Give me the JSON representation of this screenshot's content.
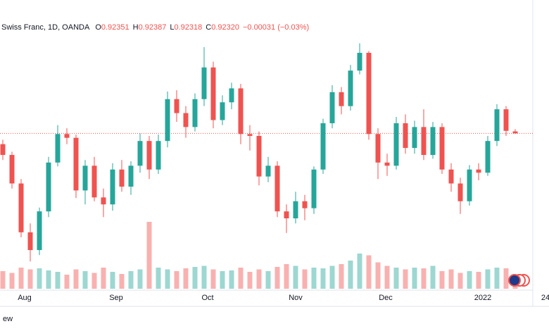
{
  "chart_data": {
    "type": "candlestick",
    "header": {
      "symbol": "Swiss Franc, 1D, OANDA",
      "o_label": "O",
      "open": "0.92351",
      "h_label": "H",
      "high": "0.92387",
      "l_label": "L",
      "low": "0.92318",
      "c_label": "C",
      "close": "0.92320",
      "change": "−0.00031 (−0.03%)"
    },
    "x_labels": [
      "Aug",
      "Sep",
      "Oct",
      "Nov",
      "Dec",
      "2022",
      "24"
    ],
    "footer": "ew",
    "up_color": "#26a69a",
    "down_color": "#ef5350",
    "ylim": [
      0.8987,
      0.9409
    ],
    "vlim": [
      0,
      260
    ],
    "last_price": 0.9232,
    "candles": [
      [
        0.9215,
        0.9222,
        0.919,
        0.9198
      ],
      [
        0.9198,
        0.9203,
        0.9145,
        0.9153
      ],
      [
        0.9153,
        0.916,
        0.9068,
        0.9076
      ],
      [
        0.9076,
        0.909,
        0.903,
        0.9048
      ],
      [
        0.9048,
        0.9115,
        0.904,
        0.9109
      ],
      [
        0.9109,
        0.9195,
        0.91,
        0.9186
      ],
      [
        0.9186,
        0.9245,
        0.918,
        0.9231
      ],
      [
        0.9231,
        0.924,
        0.9215,
        0.9225
      ],
      [
        0.9225,
        0.923,
        0.913,
        0.9142
      ],
      [
        0.9142,
        0.919,
        0.912,
        0.9181
      ],
      [
        0.9181,
        0.9195,
        0.9125,
        0.9131
      ],
      [
        0.9131,
        0.9145,
        0.91,
        0.912
      ],
      [
        0.912,
        0.9185,
        0.911,
        0.9175
      ],
      [
        0.9175,
        0.919,
        0.914,
        0.9148
      ],
      [
        0.9148,
        0.9188,
        0.9135,
        0.9181
      ],
      [
        0.9181,
        0.9232,
        0.917,
        0.922
      ],
      [
        0.922,
        0.9228,
        0.916,
        0.9175
      ],
      [
        0.9175,
        0.923,
        0.9168,
        0.922
      ],
      [
        0.922,
        0.9298,
        0.921,
        0.9286
      ],
      [
        0.9286,
        0.93,
        0.925,
        0.9264
      ],
      [
        0.9264,
        0.9275,
        0.9225,
        0.9242
      ],
      [
        0.9242,
        0.9295,
        0.9235,
        0.9286
      ],
      [
        0.9286,
        0.9368,
        0.9275,
        0.9336
      ],
      [
        0.9336,
        0.9345,
        0.924,
        0.9253
      ],
      [
        0.9253,
        0.9292,
        0.9245,
        0.9281
      ],
      [
        0.9281,
        0.9312,
        0.927,
        0.9303
      ],
      [
        0.9303,
        0.931,
        0.9215,
        0.9231
      ],
      [
        0.9231,
        0.9245,
        0.9205,
        0.9228
      ],
      [
        0.9228,
        0.9235,
        0.915,
        0.9164
      ],
      [
        0.9164,
        0.9195,
        0.9155,
        0.9181
      ],
      [
        0.9181,
        0.9188,
        0.91,
        0.9109
      ],
      [
        0.9109,
        0.912,
        0.9075,
        0.9098
      ],
      [
        0.9098,
        0.914,
        0.909,
        0.9125
      ],
      [
        0.9125,
        0.9135,
        0.9095,
        0.9114
      ],
      [
        0.9114,
        0.918,
        0.9105,
        0.9175
      ],
      [
        0.9175,
        0.9255,
        0.9168,
        0.9248
      ],
      [
        0.9248,
        0.9308,
        0.924,
        0.9297
      ],
      [
        0.9297,
        0.9305,
        0.9262,
        0.9275
      ],
      [
        0.9275,
        0.934,
        0.9268,
        0.9331
      ],
      [
        0.9331,
        0.9374,
        0.9325,
        0.9359
      ],
      [
        0.9359,
        0.9362,
        0.9222,
        0.9231
      ],
      [
        0.9231,
        0.924,
        0.916,
        0.9186
      ],
      [
        0.9186,
        0.92,
        0.9165,
        0.9181
      ],
      [
        0.9181,
        0.9258,
        0.9175,
        0.9248
      ],
      [
        0.9248,
        0.9262,
        0.92,
        0.9209
      ],
      [
        0.9209,
        0.9252,
        0.92,
        0.9242
      ],
      [
        0.9242,
        0.927,
        0.919,
        0.9198
      ],
      [
        0.9198,
        0.925,
        0.9192,
        0.9242
      ],
      [
        0.9242,
        0.9248,
        0.9168,
        0.9175
      ],
      [
        0.9175,
        0.9185,
        0.914,
        0.9153
      ],
      [
        0.9153,
        0.9162,
        0.9105,
        0.9125
      ],
      [
        0.9125,
        0.9182,
        0.9118,
        0.9175
      ],
      [
        0.9175,
        0.9185,
        0.9158,
        0.917
      ],
      [
        0.917,
        0.9228,
        0.9165,
        0.922
      ],
      [
        0.922,
        0.9278,
        0.9212,
        0.927
      ],
      [
        0.927,
        0.9275,
        0.9228,
        0.9236
      ],
      [
        0.92351,
        0.92387,
        0.92318,
        0.9232
      ]
    ],
    "volumes": [
      50,
      45,
      60,
      55,
      58,
      52,
      48,
      40,
      55,
      50,
      45,
      60,
      48,
      42,
      50,
      55,
      190,
      60,
      55,
      50,
      58,
      62,
      65,
      55,
      50,
      52,
      60,
      48,
      55,
      50,
      62,
      70,
      65,
      55,
      60,
      58,
      65,
      70,
      80,
      100,
      95,
      75,
      65,
      60,
      55,
      60,
      58,
      65,
      50,
      55,
      45,
      50,
      48,
      55,
      60,
      58,
      30
    ]
  }
}
